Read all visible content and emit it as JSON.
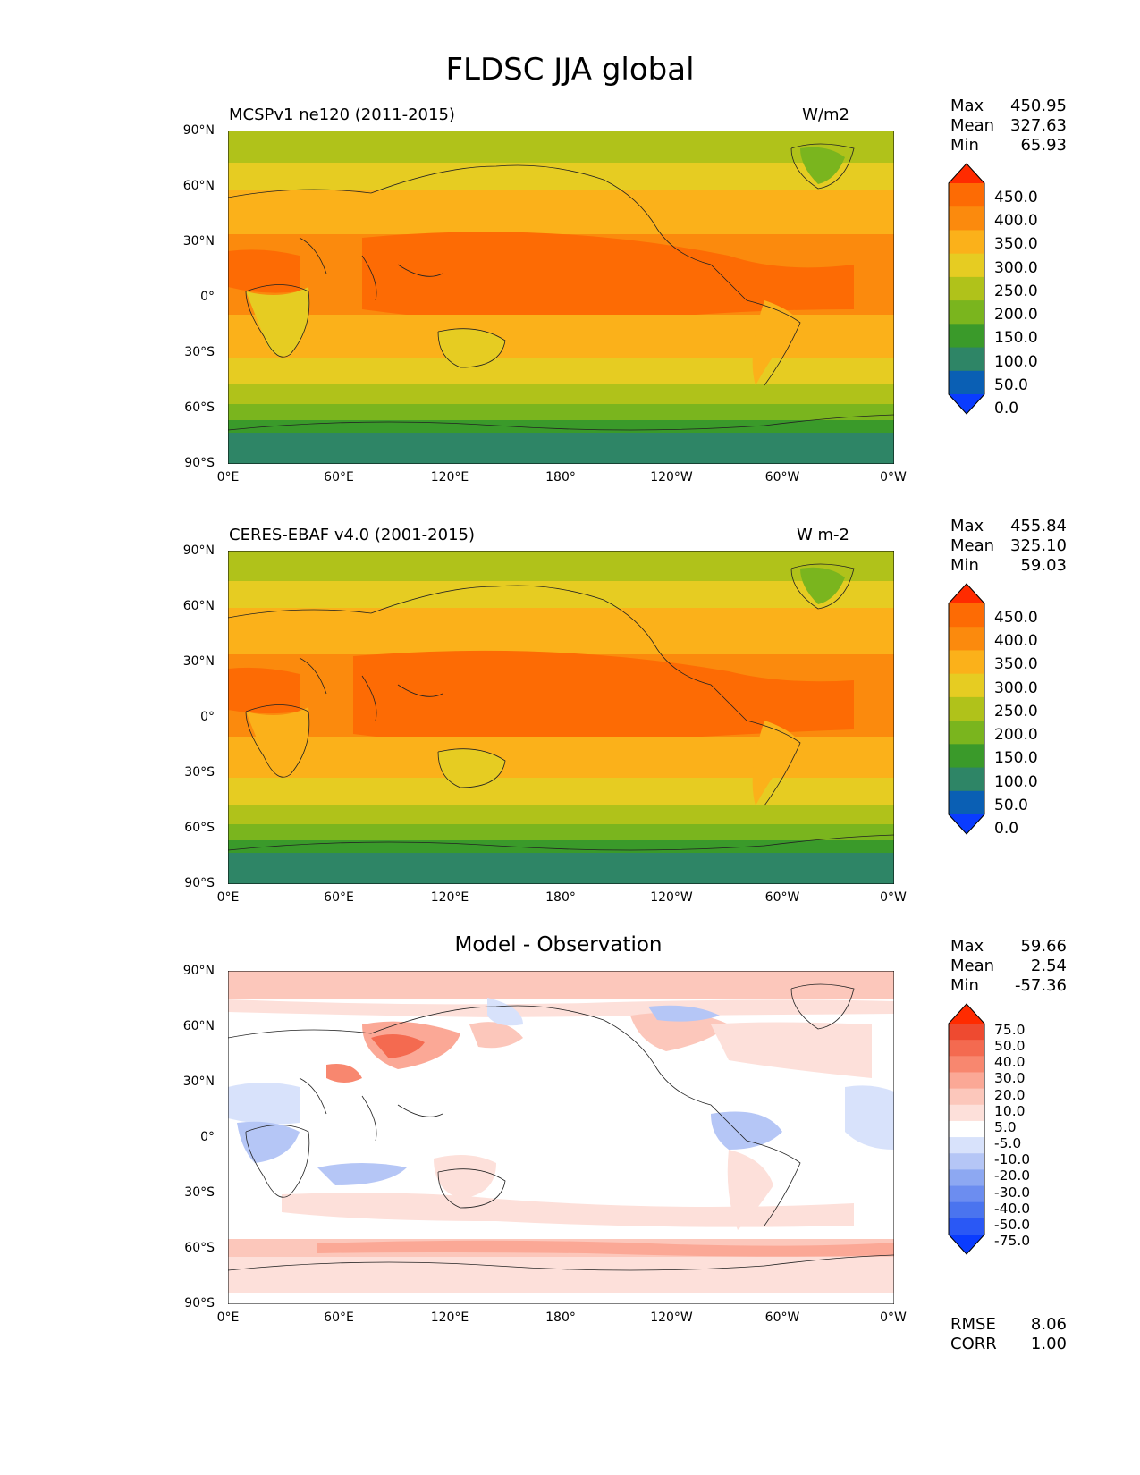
{
  "figure_title": "FLDSC JJA global",
  "lat_ticks": [
    "90°N",
    "60°N",
    "30°N",
    "0°",
    "30°S",
    "60°S",
    "90°S"
  ],
  "lon_ticks": [
    "0°E",
    "60°E",
    "120°E",
    "180°",
    "120°W",
    "60°W",
    "0°W"
  ],
  "panels": [
    {
      "title": "MCSPv1 ne120 (2011-2015)",
      "units": "W/m2",
      "stats": {
        "max_label": "Max",
        "max": "450.95",
        "mean_label": "Mean",
        "mean": "327.63",
        "min_label": "Min",
        "min": "65.93"
      },
      "colorbar": {
        "levels": [
          "450.0",
          "400.0",
          "350.0",
          "300.0",
          "250.0",
          "200.0",
          "150.0",
          "100.0",
          "50.0",
          "0.0"
        ]
      }
    },
    {
      "title": "CERES-EBAF v4.0 (2001-2015)",
      "units": "W m-2",
      "stats": {
        "max_label": "Max",
        "max": "455.84",
        "mean_label": "Mean",
        "mean": "325.10",
        "min_label": "Min",
        "min": "59.03"
      },
      "colorbar": {
        "levels": [
          "450.0",
          "400.0",
          "350.0",
          "300.0",
          "250.0",
          "200.0",
          "150.0",
          "100.0",
          "50.0",
          "0.0"
        ]
      }
    },
    {
      "title": "Model - Observation",
      "stats": {
        "max_label": "Max",
        "max": "59.66",
        "mean_label": "Mean",
        "mean": "2.54",
        "min_label": "Min",
        "min": "-57.36"
      },
      "colorbar": {
        "levels": [
          "75.0",
          "50.0",
          "40.0",
          "30.0",
          "20.0",
          "10.0",
          "5.0",
          "-5.0",
          "-10.0",
          "-20.0",
          "-30.0",
          "-40.0",
          "-50.0",
          "-75.0"
        ]
      },
      "rmse_label": "RMSE",
      "rmse": "8.06",
      "corr_label": "CORR",
      "corr": "1.00"
    }
  ],
  "colors": {
    "abs_scale": [
      "#0a3cff",
      "#0a5fb4",
      "#2e8566",
      "#3a9a2a",
      "#7ab51e",
      "#b0c21a",
      "#e6cc22",
      "#fbb11a",
      "#fb8a0d",
      "#fd6b04",
      "#ff2b00"
    ],
    "diff_scale": [
      "#0a3cff",
      "#2a58f5",
      "#4a74ef",
      "#6c8df0",
      "#8da8f2",
      "#b5c6f6",
      "#d8e2fb",
      "#ffffff",
      "#fde0da",
      "#fcc7bb",
      "#fba896",
      "#f8876f",
      "#f46a50",
      "#ee4a30",
      "#ff2b00"
    ]
  }
}
